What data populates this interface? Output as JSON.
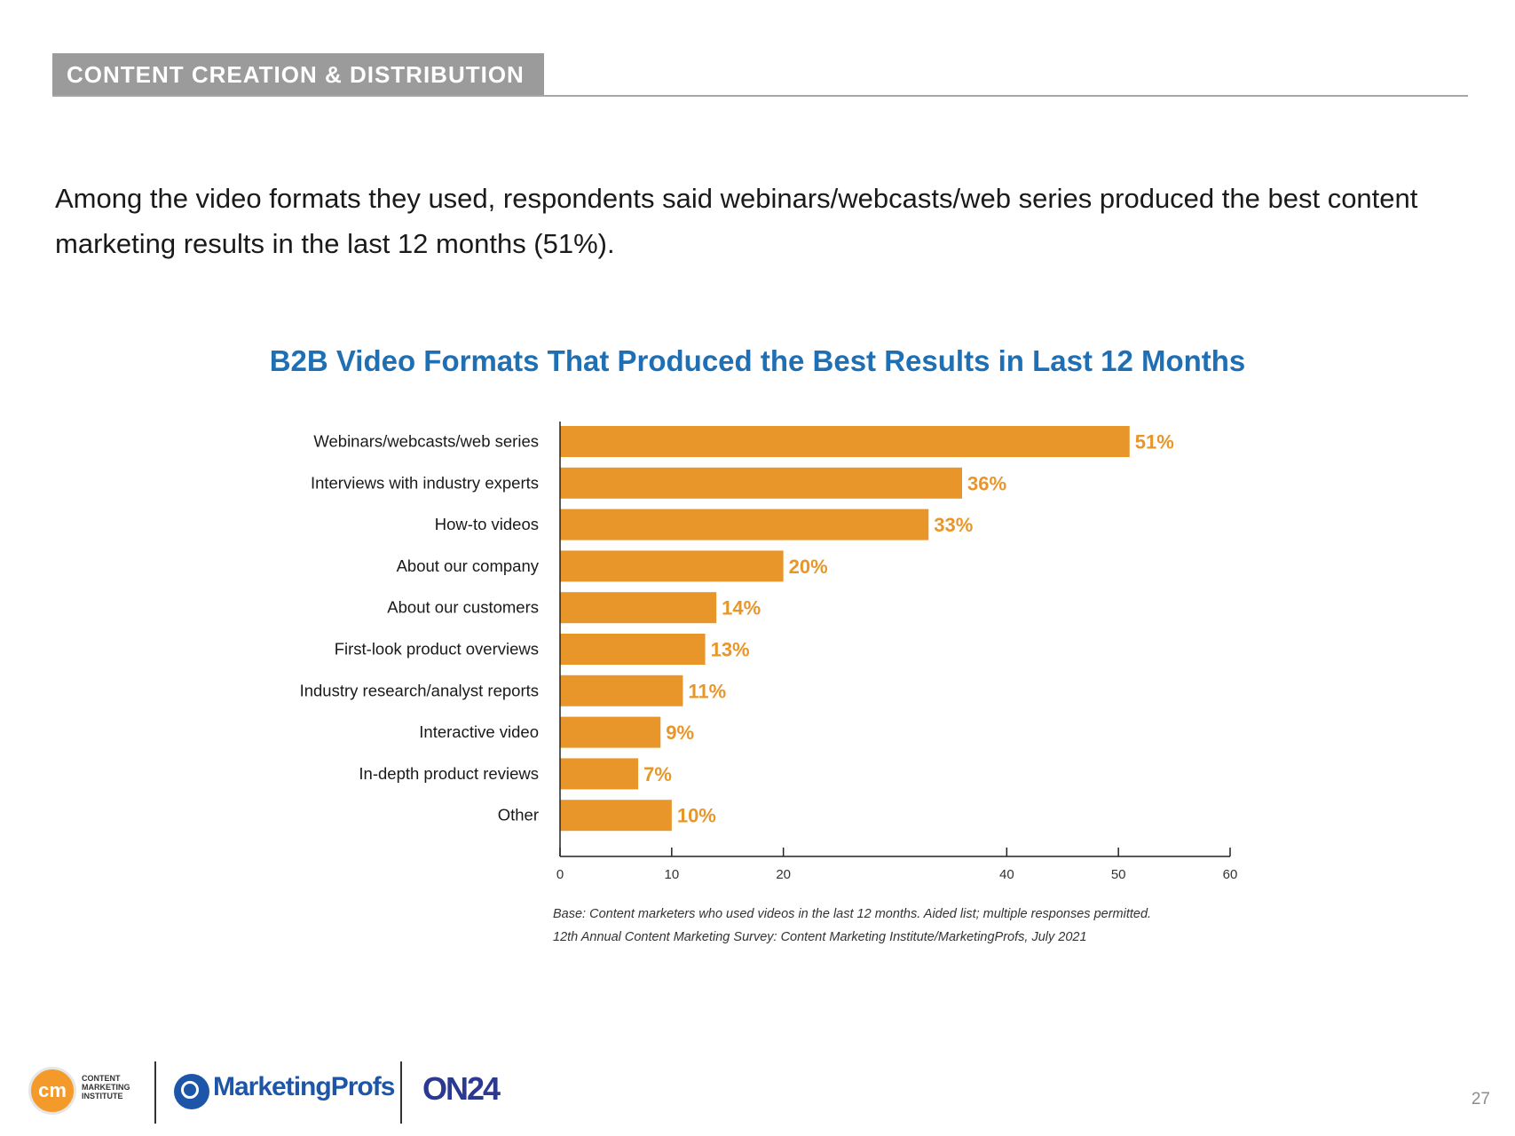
{
  "header": {
    "section_title": "CONTENT CREATION & DISTRIBUTION"
  },
  "intro": {
    "text": "Among the video formats they used, respondents said webinars/webcasts/web series produced the best content marketing results in the last 12 months (51%)."
  },
  "colors": {
    "bar": "#e8962a",
    "title": "#1f6fb5",
    "header_tab": "#9b9b9b"
  },
  "chart_data": {
    "type": "bar",
    "orientation": "horizontal",
    "title": "B2B Video Formats That Produced the Best Results in Last 12 Months",
    "categories": [
      "Webinars/webcasts/web series",
      "Interviews with industry experts",
      "How-to videos",
      "About our company",
      "About our customers",
      "First-look product overviews",
      "Industry research/analyst reports",
      "Interactive video",
      "In-depth product reviews",
      "Other"
    ],
    "values": [
      51,
      36,
      33,
      20,
      14,
      13,
      11,
      9,
      7,
      10
    ],
    "data_labels": [
      "51%",
      "36%",
      "33%",
      "20%",
      "14%",
      "13%",
      "11%",
      "9%",
      "7%",
      "10%"
    ],
    "xlim": [
      0,
      60
    ],
    "xticks": [
      0,
      10,
      20,
      40,
      50,
      60
    ],
    "xlabel": "",
    "ylabel": "",
    "grid": false
  },
  "notes": {
    "base": "Base: Content marketers who used videos in the last 12 months. Aided list; multiple responses permitted.",
    "source": "12th Annual Content Marketing Survey: Content Marketing Institute/MarketingProfs, July 2021"
  },
  "footer": {
    "cmi_logo_text": "cm",
    "cmi_name_lines": [
      "CONTENT",
      "MARKETING",
      "INSTITUTE"
    ],
    "mp_name": "MarketingProfs",
    "on24_name": "ON24",
    "page_number": "27"
  }
}
